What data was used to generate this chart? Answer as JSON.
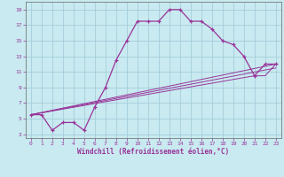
{
  "xlabel": "Windchill (Refroidissement éolien,°C)",
  "background_color": "#c8eaf0",
  "grid_color": "#a0c8d8",
  "line_color": "#993399",
  "xlim": [
    -0.5,
    23.5
  ],
  "ylim": [
    2.5,
    20.0
  ],
  "xticks": [
    0,
    1,
    2,
    3,
    4,
    5,
    6,
    7,
    8,
    9,
    10,
    11,
    12,
    13,
    14,
    15,
    16,
    17,
    18,
    19,
    20,
    21,
    22,
    23
  ],
  "yticks": [
    3,
    5,
    7,
    9,
    11,
    13,
    15,
    17,
    19
  ],
  "line1_x": [
    0,
    1,
    2,
    3,
    4,
    5,
    6,
    7,
    8,
    9,
    10,
    11,
    12,
    13,
    14,
    15,
    16,
    17,
    18,
    19,
    20,
    21,
    22,
    23
  ],
  "line1_y": [
    5.5,
    5.5,
    3.5,
    4.5,
    4.5,
    3.5,
    6.5,
    9.0,
    12.5,
    15.0,
    17.5,
    17.5,
    17.5,
    19.0,
    19.0,
    17.5,
    17.5,
    16.5,
    15.0,
    14.5,
    13.0,
    10.5,
    12.0,
    12.0
  ],
  "line2_x": [
    0,
    23
  ],
  "line2_y": [
    5.5,
    12.0
  ],
  "line3_x": [
    0,
    21,
    22,
    23
  ],
  "line3_y": [
    5.5,
    10.5,
    10.5,
    12.0
  ],
  "line4_x": [
    0,
    23
  ],
  "line4_y": [
    5.5,
    11.5
  ]
}
